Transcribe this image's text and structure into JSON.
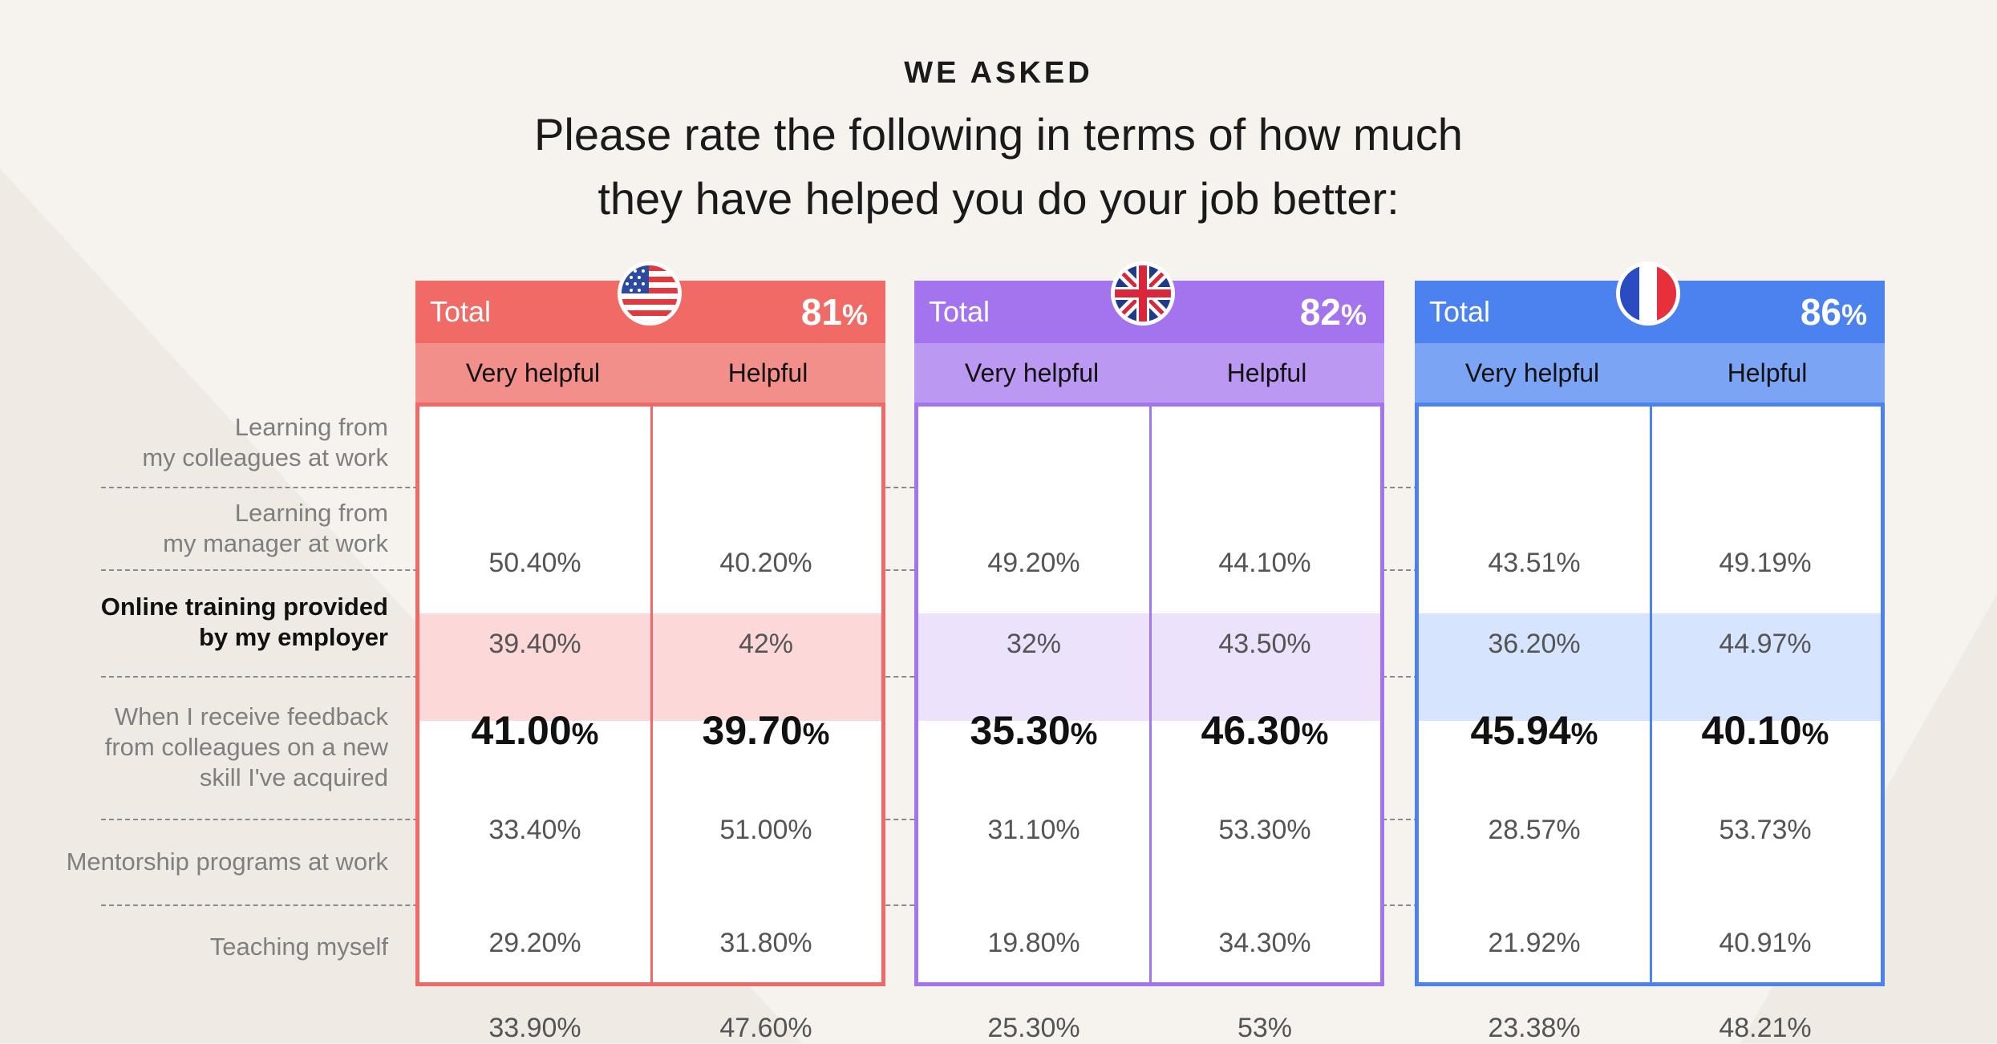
{
  "kicker": "WE ASKED",
  "title_line1": "Please rate the following in terms of how much",
  "title_line2": "they have helped you do your job better:",
  "colors": {
    "us": "#f06a66",
    "uk": "#a374ee",
    "fr": "#4c82f0",
    "background": "#f6f3ee"
  },
  "chart_data": {
    "type": "table",
    "title": "Please rate the following in terms of how much they have helped you do your job better:",
    "rows": [
      {
        "label_line1": "Learning from",
        "label_line2": "my colleagues at work",
        "label_line3": ""
      },
      {
        "label_line1": "Learning from",
        "label_line2": "my manager at work",
        "label_line3": ""
      },
      {
        "label_line1": "Online training provided",
        "label_line2": "by my employer",
        "label_line3": "",
        "highlighted": true
      },
      {
        "label_line1": "When I receive feedback",
        "label_line2": "from colleagues on a new",
        "label_line3": "skill I've acquired"
      },
      {
        "label_line1": "Mentorship programs at work",
        "label_line2": "",
        "label_line3": ""
      },
      {
        "label_line1": "Teaching myself",
        "label_line2": "",
        "label_line3": ""
      }
    ],
    "tables": [
      {
        "country_icon": "us-flag-icon",
        "total_label": "Total",
        "total_value": "81",
        "total_unit": "%",
        "col1": "Very helpful",
        "col2": "Helpful",
        "cells": [
          [
            "50.40%",
            "40.20%"
          ],
          [
            "39.40%",
            "42%"
          ],
          [
            "41.00",
            "39.70"
          ],
          [
            "33.40%",
            "51.00%"
          ],
          [
            "29.20%",
            "31.80%"
          ],
          [
            "33.90%",
            "47.60%"
          ]
        ]
      },
      {
        "country_icon": "uk-flag-icon",
        "total_label": "Total",
        "total_value": "82",
        "total_unit": "%",
        "col1": "Very helpful",
        "col2": "Helpful",
        "cells": [
          [
            "49.20%",
            "44.10%"
          ],
          [
            "32%",
            "43.50%"
          ],
          [
            "35.30",
            "46.30"
          ],
          [
            "31.10%",
            "53.30%"
          ],
          [
            "19.80%",
            "34.30%"
          ],
          [
            "25.30%",
            "53%"
          ]
        ]
      },
      {
        "country_icon": "france-flag-icon",
        "total_label": "Total",
        "total_value": "86",
        "total_unit": "%",
        "col1": "Very helpful",
        "col2": "Helpful",
        "cells": [
          [
            "43.51%",
            "49.19%"
          ],
          [
            "36.20%",
            "44.97%"
          ],
          [
            "45.94",
            "40.10"
          ],
          [
            "28.57%",
            "53.73%"
          ],
          [
            "21.92%",
            "40.91%"
          ],
          [
            "23.38%",
            "48.21%"
          ]
        ]
      }
    ],
    "highlight_unit": "%"
  }
}
